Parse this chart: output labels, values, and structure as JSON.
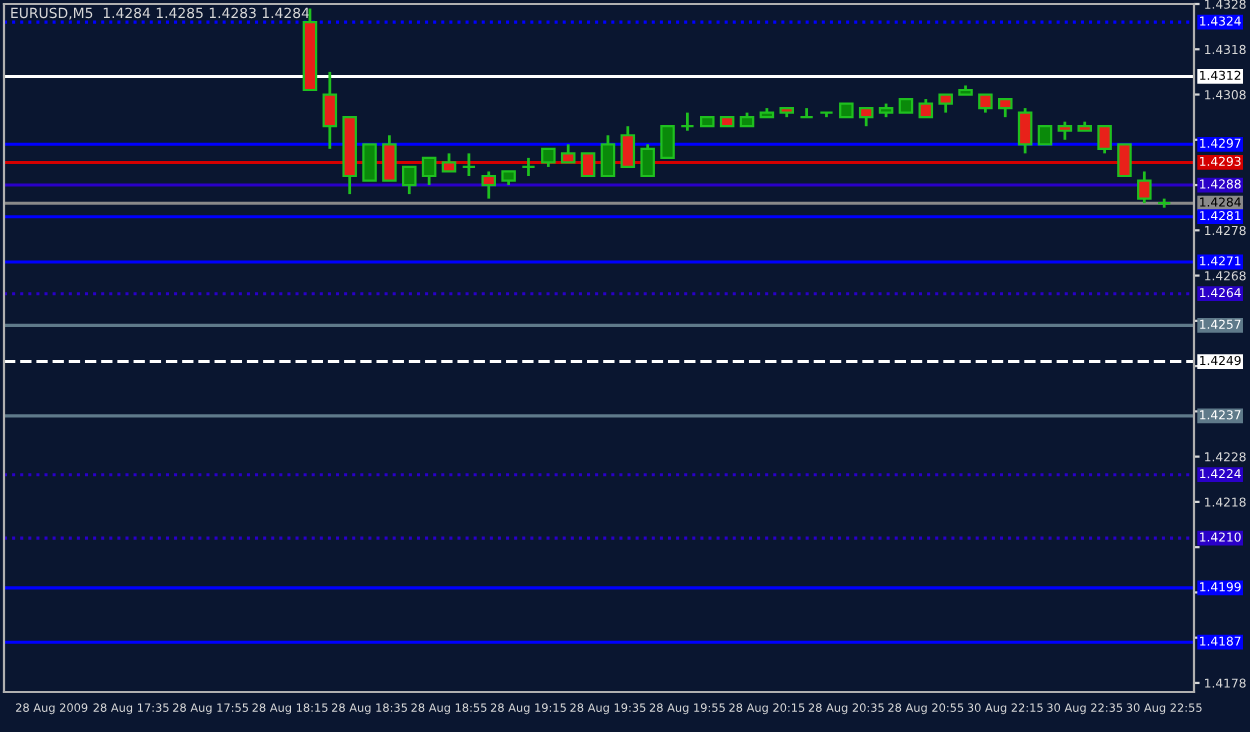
{
  "chart_data": {
    "type": "candlestick",
    "title": "EURUSD,M5  1.4284 1.4285 1.4283 1.4284",
    "categories": [
      "28 Aug 2009",
      null,
      null,
      null,
      "28 Aug 17:35",
      null,
      null,
      null,
      "28 Aug 17:55",
      null,
      null,
      null,
      "28 Aug 18:15",
      null,
      null,
      null,
      "28 Aug 18:35",
      null,
      null,
      null,
      "28 Aug 18:55",
      null,
      null,
      null,
      "28 Aug 19:15",
      null,
      null,
      null,
      "28 Aug 19:35",
      null,
      null,
      null,
      "28 Aug 19:55",
      null,
      null,
      null,
      "28 Aug 20:15",
      null,
      null,
      null,
      "28 Aug 20:35",
      null,
      null,
      null,
      "28 Aug 20:55",
      null,
      null,
      null,
      "30 Aug 22:15",
      null,
      null,
      null,
      "30 Aug 22:35",
      null,
      null,
      null,
      "30 Aug 22:55"
    ],
    "ohlc": [
      null,
      null,
      null,
      null,
      null,
      null,
      null,
      null,
      null,
      null,
      null,
      null,
      null,
      [
        1.4324,
        1.4327,
        1.4309,
        1.4309
      ],
      [
        1.4308,
        1.4313,
        1.4296,
        1.4301
      ],
      [
        1.4303,
        1.4303,
        1.4286,
        1.429
      ],
      [
        1.4289,
        1.4297,
        1.4289,
        1.4297
      ],
      [
        1.4297,
        1.4299,
        1.4289,
        1.4289
      ],
      [
        1.4288,
        1.4292,
        1.4286,
        1.4292
      ],
      [
        1.429,
        1.4294,
        1.4288,
        1.4294
      ],
      [
        1.4293,
        1.4295,
        1.4291,
        1.4291
      ],
      [
        1.4292,
        1.4295,
        1.429,
        1.4292
      ],
      [
        1.429,
        1.4291,
        1.4285,
        1.4288
      ],
      [
        1.4289,
        1.4291,
        1.4288,
        1.4291
      ],
      [
        1.4292,
        1.4294,
        1.429,
        1.4292
      ],
      [
        1.4293,
        1.4296,
        1.4292,
        1.4296
      ],
      [
        1.4295,
        1.4297,
        1.4293,
        1.4293
      ],
      [
        1.4295,
        1.4295,
        1.429,
        1.429
      ],
      [
        1.429,
        1.4299,
        1.429,
        1.4297
      ],
      [
        1.4299,
        1.4301,
        1.4292,
        1.4292
      ],
      [
        1.429,
        1.4297,
        1.429,
        1.4296
      ],
      [
        1.4294,
        1.4301,
        1.4294,
        1.4301
      ],
      [
        1.4301,
        1.4304,
        1.43,
        1.4301
      ],
      [
        1.4301,
        1.4303,
        1.4301,
        1.4303
      ],
      [
        1.4303,
        1.4303,
        1.4301,
        1.4301
      ],
      [
        1.4301,
        1.4304,
        1.4301,
        1.4303
      ],
      [
        1.4303,
        1.4305,
        1.4303,
        1.4304
      ],
      [
        1.4305,
        1.4305,
        1.4303,
        1.4304
      ],
      [
        1.4303,
        1.4305,
        1.4303,
        1.4303
      ],
      [
        1.4304,
        1.4304,
        1.4303,
        1.4304
      ],
      [
        1.4303,
        1.4306,
        1.4303,
        1.4306
      ],
      [
        1.4305,
        1.4305,
        1.4301,
        1.4303
      ],
      [
        1.4304,
        1.4306,
        1.4303,
        1.4305
      ],
      [
        1.4304,
        1.4307,
        1.4304,
        1.4307
      ],
      [
        1.4306,
        1.4307,
        1.4303,
        1.4303
      ],
      [
        1.4308,
        1.4308,
        1.4304,
        1.4306
      ],
      [
        1.4308,
        1.431,
        1.4308,
        1.4309
      ],
      [
        1.4308,
        1.4308,
        1.4304,
        1.4305
      ],
      [
        1.4307,
        1.4307,
        1.4303,
        1.4305
      ],
      [
        1.4304,
        1.4305,
        1.4295,
        1.4297
      ],
      [
        1.4297,
        1.4301,
        1.4297,
        1.4301
      ],
      [
        1.4301,
        1.4302,
        1.4298,
        1.43
      ],
      [
        1.4301,
        1.4302,
        1.43,
        1.43
      ],
      [
        1.4301,
        1.4301,
        1.4295,
        1.4296
      ],
      [
        1.4297,
        1.4297,
        1.429,
        1.429
      ],
      [
        1.4289,
        1.4291,
        1.4284,
        1.4285
      ],
      [
        1.4284,
        1.4285,
        1.4283,
        1.4284
      ]
    ],
    "ylim": [
      1.4176,
      1.4328
    ],
    "yticks": [
      1.4178,
      {
        "value": 1.4188,
        "label": null
      },
      {
        "value": 1.4198,
        "label": null
      },
      {
        "value": 1.4208,
        "label": null
      },
      1.4218,
      1.4228,
      {
        "value": 1.4238,
        "label": null
      },
      {
        "value": 1.4248,
        "label": null
      },
      {
        "value": 1.4258,
        "label": null
      },
      1.4268,
      1.4278,
      {
        "value": 1.4288,
        "label": null
      },
      {
        "value": 1.4298,
        "label": null
      },
      1.4308,
      1.4318,
      1.4328
    ],
    "ref_lines": [
      {
        "axis": "y",
        "value": 1.4324,
        "label": "1.4324",
        "color": "#0000ff",
        "line_style": "dotted"
      },
      {
        "axis": "y",
        "value": 1.4312,
        "label": "1.4312",
        "color": "#ffffff",
        "line_style": "solid"
      },
      {
        "axis": "y",
        "value": 1.4297,
        "label": "1.4297",
        "color": "#0000ff",
        "line_style": "solid"
      },
      {
        "axis": "y",
        "value": 1.4293,
        "label": "1.4293",
        "color": "#d40000",
        "line_style": "solid"
      },
      {
        "axis": "y",
        "value": 1.4288,
        "label": "1.4288",
        "color": "#2a00c8",
        "line_style": "solid"
      },
      {
        "axis": "y",
        "value": 1.4284,
        "label": "1.4284",
        "color": "#8a8a8a",
        "line_style": "solid"
      },
      {
        "axis": "y",
        "value": 1.4281,
        "label": "1.4281",
        "color": "#0000ff",
        "line_style": "solid"
      },
      {
        "axis": "y",
        "value": 1.4271,
        "label": "1.4271",
        "color": "#0000ff",
        "line_style": "solid"
      },
      {
        "axis": "y",
        "value": 1.4264,
        "label": "1.4264",
        "color": "#2a00c8",
        "line_style": "dotted"
      },
      {
        "axis": "y",
        "value": 1.4257,
        "label": "1.4257",
        "color": "#5f7a8a",
        "line_style": "solid"
      },
      {
        "axis": "y",
        "value": 1.4249,
        "label": "1.4249",
        "color": "#ffffff",
        "line_style": "dashed"
      },
      {
        "axis": "y",
        "value": 1.4237,
        "label": "1.4237",
        "color": "#5f7a8a",
        "line_style": "solid"
      },
      {
        "axis": "y",
        "value": 1.4224,
        "label": "1.4224",
        "color": "#2a00c8",
        "line_style": "dotted"
      },
      {
        "axis": "y",
        "value": 1.421,
        "label": "1.4210",
        "color": "#2a00c8",
        "line_style": "dotted"
      },
      {
        "axis": "y",
        "value": 1.4199,
        "label": "1.4199",
        "color": "#0000ff",
        "line_style": "solid"
      },
      {
        "axis": "y",
        "value": 1.4187,
        "label": "1.4187",
        "color": "#0000ff",
        "line_style": "solid"
      }
    ],
    "grid": false,
    "legend": false
  }
}
